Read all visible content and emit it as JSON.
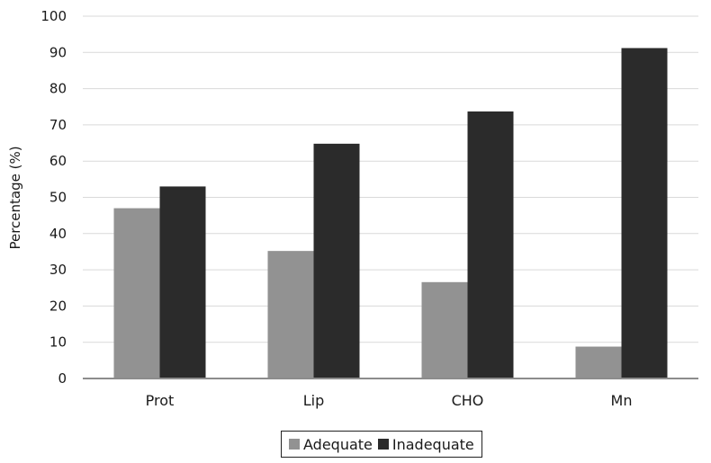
{
  "chart_data": {
    "type": "bar",
    "title": "",
    "xlabel": "",
    "ylabel": "Percentage (%)",
    "ylim": [
      0,
      100
    ],
    "yticks": [
      0,
      10,
      20,
      30,
      40,
      50,
      60,
      70,
      80,
      90,
      100
    ],
    "categories": [
      "Prot",
      "Lip",
      "CHO",
      "Mn"
    ],
    "series": [
      {
        "name": "Adequate",
        "color": "#929292",
        "values": [
          47,
          35.2,
          26.6,
          8.8
        ]
      },
      {
        "name": "Inadequate",
        "color": "#2b2b2b",
        "values": [
          53,
          64.8,
          73.7,
          91.2
        ]
      }
    ],
    "grid": true,
    "legend_position": "bottom-center"
  }
}
